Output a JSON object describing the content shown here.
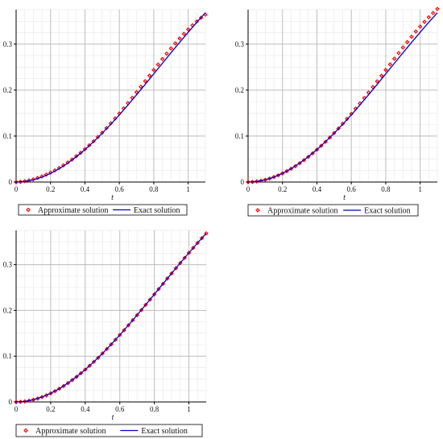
{
  "chart_data": [
    {
      "type": "line",
      "xlabel": "t",
      "ylabel": "",
      "xlim": [
        0,
        1.1
      ],
      "ylim": [
        0,
        0.375
      ],
      "xticks": [
        0,
        0.2,
        0.4,
        0.6,
        0.8,
        1
      ],
      "xtick_labels": [
        "0",
        "0.2",
        "0.4",
        "0.6",
        "0.8",
        "1"
      ],
      "yticks": [
        0,
        0.1,
        0.2,
        0.3
      ],
      "ytick_labels": [
        "0",
        "0.1",
        "0.2",
        "0.3"
      ],
      "grid": true,
      "legend": "bottom",
      "series": [
        {
          "name": "Approximate solution",
          "marker": "diamond",
          "color": "#ff0000",
          "x": [
            0,
            0.025,
            0.05,
            0.075,
            0.1,
            0.125,
            0.15,
            0.175,
            0.2,
            0.225,
            0.25,
            0.275,
            0.3,
            0.325,
            0.35,
            0.375,
            0.4,
            0.425,
            0.45,
            0.475,
            0.5,
            0.525,
            0.55,
            0.575,
            0.6,
            0.625,
            0.65,
            0.675,
            0.7,
            0.725,
            0.75,
            0.775,
            0.8,
            0.825,
            0.85,
            0.875,
            0.9,
            0.925,
            0.95,
            0.975,
            1,
            1.025,
            1.05,
            1.075,
            1.1
          ],
          "y": [
            0,
            0.0005,
            0.0017,
            0.0035,
            0.006,
            0.0089,
            0.0123,
            0.0162,
            0.0205,
            0.0253,
            0.0306,
            0.0363,
            0.0425,
            0.0491,
            0.0562,
            0.0637,
            0.0716,
            0.0799,
            0.0887,
            0.0979,
            0.1074,
            0.1173,
            0.1276,
            0.1382,
            0.1491,
            0.1603,
            0.1717,
            0.1834,
            0.1953,
            0.2073,
            0.2194,
            0.2315,
            0.2437,
            0.2557,
            0.2676,
            0.2793,
            0.2907,
            0.3017,
            0.3123,
            0.3224,
            0.332,
            0.341,
            0.3494,
            0.3572,
            0.3643
          ]
        },
        {
          "name": "Exact solution",
          "color": "#0000cc",
          "x": [
            0,
            0.05,
            0.1,
            0.15,
            0.2,
            0.25,
            0.3,
            0.35,
            0.4,
            0.45,
            0.5,
            0.55,
            0.6,
            0.65,
            0.7,
            0.75,
            0.8,
            0.85,
            0.9,
            0.95,
            1,
            1.05,
            1.1
          ],
          "y": [
            0,
            0.0012,
            0.0048,
            0.0107,
            0.0188,
            0.029,
            0.0412,
            0.0551,
            0.0706,
            0.0877,
            0.1061,
            0.1257,
            0.1463,
            0.1677,
            0.1898,
            0.2124,
            0.2353,
            0.2582,
            0.2811,
            0.3037,
            0.3259,
            0.3475,
            0.3684
          ]
        }
      ]
    },
    {
      "type": "line",
      "xlabel": "t",
      "ylabel": "",
      "xlim": [
        0,
        1.1
      ],
      "ylim": [
        0,
        0.375
      ],
      "xticks": [
        0,
        0.2,
        0.4,
        0.6,
        0.8,
        1
      ],
      "xtick_labels": [
        "0",
        "0.2",
        "0.4",
        "0.6",
        "0.8",
        "1"
      ],
      "yticks": [
        0,
        0.1,
        0.2,
        0.3
      ],
      "ytick_labels": [
        "0",
        "0.1",
        "0.2",
        "0.3"
      ],
      "grid": true,
      "legend": "bottom",
      "series": [
        {
          "name": "Approximate solution",
          "marker": "diamond",
          "color": "#ff0000",
          "x": [
            0,
            0.025,
            0.05,
            0.075,
            0.1,
            0.125,
            0.15,
            0.175,
            0.2,
            0.225,
            0.25,
            0.275,
            0.3,
            0.325,
            0.35,
            0.375,
            0.4,
            0.425,
            0.45,
            0.475,
            0.5,
            0.525,
            0.55,
            0.575,
            0.6,
            0.625,
            0.65,
            0.675,
            0.7,
            0.725,
            0.75,
            0.775,
            0.8,
            0.825,
            0.85,
            0.875,
            0.9,
            0.925,
            0.95,
            0.975,
            1,
            1.025,
            1.05,
            1.075,
            1.1
          ],
          "y": [
            0,
            0.0003,
            0.0013,
            0.0028,
            0.005,
            0.0077,
            0.0109,
            0.0146,
            0.0189,
            0.0237,
            0.0289,
            0.0346,
            0.0409,
            0.0476,
            0.0548,
            0.0624,
            0.0704,
            0.0788,
            0.0877,
            0.0969,
            0.1066,
            0.1166,
            0.1269,
            0.1375,
            0.1484,
            0.1596,
            0.1711,
            0.1828,
            0.1947,
            0.2068,
            0.219,
            0.2313,
            0.2437,
            0.2561,
            0.2684,
            0.2806,
            0.2927,
            0.3045,
            0.3161,
            0.3274,
            0.3382,
            0.3486,
            0.3585,
            0.3678,
            0.3765
          ]
        },
        {
          "name": "Exact solution",
          "color": "#0000cc",
          "x": [
            0,
            0.05,
            0.1,
            0.15,
            0.2,
            0.25,
            0.3,
            0.35,
            0.4,
            0.45,
            0.5,
            0.55,
            0.6,
            0.65,
            0.7,
            0.75,
            0.8,
            0.85,
            0.9,
            0.95,
            1,
            1.05,
            1.1
          ],
          "y": [
            0,
            0.0012,
            0.0048,
            0.0107,
            0.0188,
            0.029,
            0.0412,
            0.0551,
            0.0706,
            0.0877,
            0.1061,
            0.1257,
            0.1463,
            0.1677,
            0.1898,
            0.2124,
            0.2353,
            0.2582,
            0.2811,
            0.3037,
            0.3259,
            0.3475,
            0.3684
          ]
        }
      ]
    },
    {
      "type": "line",
      "xlabel": "t",
      "ylabel": "",
      "xlim": [
        0,
        1.1
      ],
      "ylim": [
        0,
        0.375
      ],
      "xticks": [
        0,
        0.2,
        0.4,
        0.6,
        0.8,
        1
      ],
      "xtick_labels": [
        "0",
        "0.2",
        "0.4",
        "0.6",
        "0.8",
        "1"
      ],
      "yticks": [
        0,
        0.1,
        0.2,
        0.3
      ],
      "ytick_labels": [
        "0",
        "0.1",
        "0.2",
        "0.3"
      ],
      "grid": true,
      "legend": "bottom",
      "series": [
        {
          "name": "Approximate solution",
          "marker": "diamond",
          "color": "#ff0000",
          "x": [
            0,
            0.025,
            0.05,
            0.075,
            0.1,
            0.125,
            0.15,
            0.175,
            0.2,
            0.225,
            0.25,
            0.275,
            0.3,
            0.325,
            0.35,
            0.375,
            0.4,
            0.425,
            0.45,
            0.475,
            0.5,
            0.525,
            0.55,
            0.575,
            0.6,
            0.625,
            0.65,
            0.675,
            0.7,
            0.725,
            0.75,
            0.775,
            0.8,
            0.825,
            0.85,
            0.875,
            0.9,
            0.925,
            0.95,
            0.975,
            1,
            1.025,
            1.05,
            1.075,
            1.1
          ],
          "y": [
            0,
            0.0003,
            0.0012,
            0.0027,
            0.0048,
            0.0075,
            0.0107,
            0.0144,
            0.0188,
            0.0236,
            0.029,
            0.0348,
            0.0412,
            0.048,
            0.0551,
            0.0627,
            0.0706,
            0.079,
            0.0877,
            0.0967,
            0.1061,
            0.1158,
            0.1257,
            0.1359,
            0.1463,
            0.1569,
            0.1677,
            0.1787,
            0.1898,
            0.201,
            0.2124,
            0.2238,
            0.2353,
            0.2467,
            0.2582,
            0.2697,
            0.2811,
            0.2924,
            0.3037,
            0.3149,
            0.3259,
            0.3368,
            0.3475,
            0.3581,
            0.3684
          ]
        },
        {
          "name": "Exact solution",
          "color": "#0000cc",
          "x": [
            0,
            0.05,
            0.1,
            0.15,
            0.2,
            0.25,
            0.3,
            0.35,
            0.4,
            0.45,
            0.5,
            0.55,
            0.6,
            0.65,
            0.7,
            0.75,
            0.8,
            0.85,
            0.9,
            0.95,
            1,
            1.05,
            1.1
          ],
          "y": [
            0,
            0.0012,
            0.0048,
            0.0107,
            0.0188,
            0.029,
            0.0412,
            0.0551,
            0.0706,
            0.0877,
            0.1061,
            0.1257,
            0.1463,
            0.1677,
            0.1898,
            0.2124,
            0.2353,
            0.2582,
            0.2811,
            0.3037,
            0.3259,
            0.3475,
            0.3684
          ]
        }
      ]
    }
  ]
}
